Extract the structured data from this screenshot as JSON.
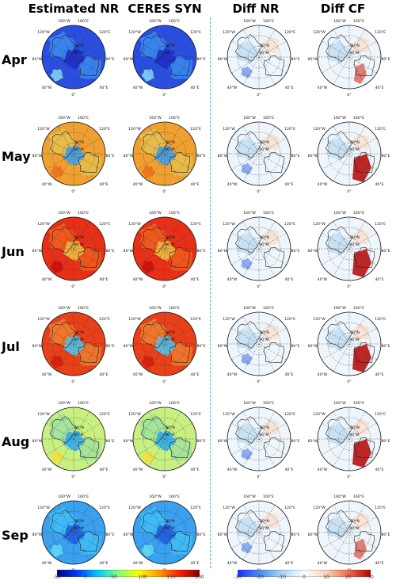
{
  "columns": [
    "Estimated NR",
    "CERES SYN",
    "Diff NR",
    "Diff CF"
  ],
  "months": [
    "Apr",
    "May",
    "Jun",
    "Jul",
    "Aug",
    "Sep"
  ],
  "map_labels": {
    "lon": [
      "160°W",
      "160°E",
      "120°W",
      "120°E",
      "80°W",
      "80°E",
      "40°W",
      "40°E",
      "0°"
    ],
    "lat": [
      "60°N",
      "80°N"
    ]
  },
  "colorbars": [
    {
      "name": "flux-colorbar",
      "ticks": [
        "-50",
        "0",
        "50",
        "100",
        "150",
        "200"
      ],
      "range": [
        -50,
        200
      ],
      "colors": [
        "#00007f",
        "#0038ff",
        "#00c8ff",
        "#7dff7a",
        "#ffff00",
        "#ff9a00",
        "#ff2000",
        "#7f0000"
      ]
    },
    {
      "name": "diff-colorbar",
      "ticks": [
        "-30",
        "-20",
        "-10",
        "0",
        "10",
        "20",
        "30"
      ],
      "range": [
        -30,
        30
      ],
      "colors": [
        "#1b2eff",
        "#4a8ef0",
        "#a6d5f5",
        "#ffffff",
        "#f9d2b5",
        "#f06a4e",
        "#b00000"
      ]
    }
  ],
  "month_styles": {
    "Apr": {
      "ocean": "#2a4fe0",
      "land": "#3c8cf0",
      "cap": "#1c2fd0",
      "hot": "#7fd0f0"
    },
    "May": {
      "ocean": "#f0a030",
      "land": "#e8c050",
      "cap": "#40a0f0",
      "hot": "#f07020"
    },
    "Jun": {
      "ocean": "#e83018",
      "land": "#f06020",
      "cap": "#f0c040",
      "hot": "#c81010"
    },
    "Jul": {
      "ocean": "#e84018",
      "land": "#f08030",
      "cap": "#50c8f0",
      "hot": "#d02010"
    },
    "Aug": {
      "ocean": "#c8f080",
      "land": "#a0e0a0",
      "cap": "#30b0f0",
      "hot": "#f0e040"
    },
    "Sep": {
      "ocean": "#3aa0f0",
      "land": "#40c0f8",
      "cap": "#2060e8",
      "hot": "#60d8f0"
    }
  }
}
